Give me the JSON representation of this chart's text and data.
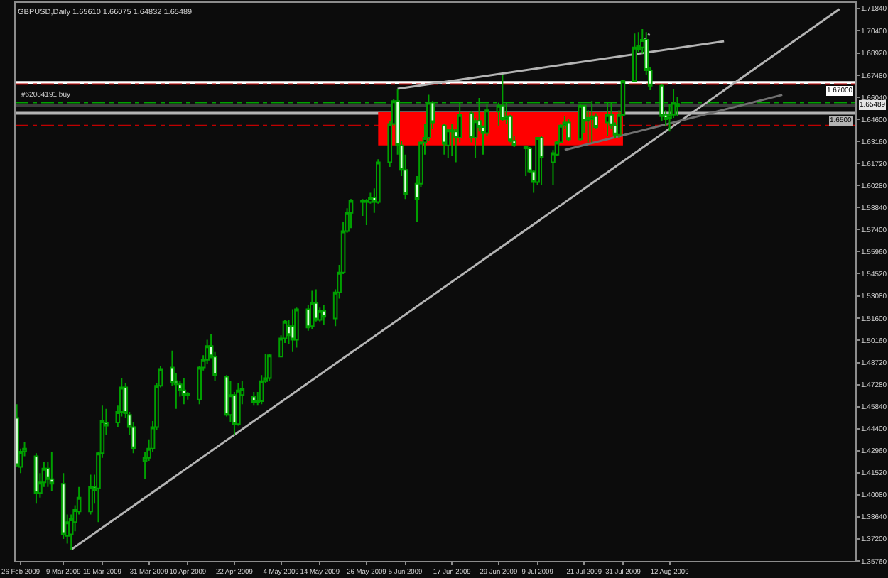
{
  "chart_data": {
    "type": "candlestick",
    "title": "GBPUSD,Daily 1.65610 1.66075 1.64832 1.65489",
    "series": [
      {
        "type": "line",
        "color": "#ff0000",
        "x": [
          "2009-05-29",
          "2009-07-31"
        ],
        "values": [
          1.65,
          1.65
        ],
        "lower": [
          1.629,
          1.629
        ],
        "upper": [
          1.65,
          1.65
        ]
      },
      {
        "type": "line",
        "color": "#b4b4b4",
        "line_style": "solid",
        "x": [
          "2009-03-11",
          "2009-09-24T17:00"
        ],
        "values": [
          1.365,
          1.718
        ]
      },
      {
        "type": "line",
        "color": "#b4b4b4",
        "line_style": "solid",
        "x": [
          "2009-06-03",
          "2009-08-26"
        ],
        "values": [
          1.666,
          1.697
        ]
      },
      {
        "type": "line",
        "color": "#707070",
        "line_style": "solid",
        "x": [
          "2009-07-16",
          "2009-09-10"
        ],
        "values": [
          1.626,
          1.662
        ]
      },
      {
        "type": "line",
        "color": "#a0a0a0",
        "line_style": "dotted",
        "x": [
          "2009-08-04",
          "2009-08-06T19:00"
        ],
        "values": [
          1.692,
          1.702
        ]
      },
      {
        "color": "#00a000",
        "x": [
          "2009-02-25",
          "2009-02-26",
          "2009-02-27",
          "2009-03-02",
          "2009-03-03",
          "2009-03-04",
          "2009-03-05",
          "2009-03-06",
          "2009-03-09",
          "2009-03-10",
          "2009-03-11",
          "2009-03-12",
          "2009-03-13",
          "2009-03-16",
          "2009-03-17",
          "2009-03-18",
          "2009-03-19",
          "2009-03-20",
          "2009-03-23",
          "2009-03-24",
          "2009-03-25",
          "2009-03-26",
          "2009-03-27",
          "2009-03-30",
          "2009-03-31",
          "2009-04-01",
          "2009-04-02",
          "2009-04-03",
          "2009-04-06",
          "2009-04-07",
          "2009-04-08",
          "2009-04-09",
          "2009-04-10",
          "2009-04-13",
          "2009-04-14",
          "2009-04-15",
          "2009-04-16",
          "2009-04-17",
          "2009-04-20",
          "2009-04-21",
          "2009-04-22",
          "2009-04-23",
          "2009-04-24",
          "2009-04-27",
          "2009-04-28",
          "2009-04-29",
          "2009-04-30",
          "2009-05-01",
          "2009-05-04",
          "2009-05-05",
          "2009-05-06",
          "2009-05-07",
          "2009-05-08",
          "2009-05-11",
          "2009-05-12",
          "2009-05-13",
          "2009-05-14",
          "2009-05-15",
          "2009-05-18",
          "2009-05-19",
          "2009-05-20",
          "2009-05-21",
          "2009-05-22",
          "2009-05-25",
          "2009-05-26",
          "2009-05-27",
          "2009-05-28",
          "2009-05-29",
          "2009-06-01",
          "2009-06-02",
          "2009-06-03",
          "2009-06-04",
          "2009-06-05",
          "2009-06-08",
          "2009-06-09",
          "2009-06-10",
          "2009-06-11",
          "2009-06-12",
          "2009-06-15",
          "2009-06-16",
          "2009-06-17",
          "2009-06-18",
          "2009-06-19",
          "2009-06-22",
          "2009-06-23",
          "2009-06-24",
          "2009-06-25",
          "2009-06-26",
          "2009-06-29",
          "2009-06-30",
          "2009-07-01",
          "2009-07-02",
          "2009-07-03",
          "2009-07-06",
          "2009-07-07",
          "2009-07-08",
          "2009-07-09",
          "2009-07-10",
          "2009-07-13",
          "2009-07-14",
          "2009-07-15",
          "2009-07-16",
          "2009-07-17",
          "2009-07-20",
          "2009-07-21",
          "2009-07-22",
          "2009-07-23",
          "2009-07-24",
          "2009-07-27",
          "2009-07-28",
          "2009-07-29",
          "2009-07-30",
          "2009-07-31",
          "2009-08-03",
          "2009-08-04",
          "2009-08-05",
          "2009-08-06",
          "2009-08-07",
          "2009-08-10",
          "2009-08-11",
          "2009-08-12",
          "2009-08-13",
          "2009-08-14"
        ],
        "ohlc": [
          [
            1.451,
            1.46,
            1.419,
            1.42
          ],
          [
            1.419,
            1.431,
            1.415,
            1.429
          ],
          [
            1.429,
            1.435,
            1.426,
            1.431
          ],
          [
            1.426,
            1.428,
            1.395,
            1.402
          ],
          [
            1.402,
            1.415,
            1.399,
            1.409
          ],
          [
            1.409,
            1.422,
            1.406,
            1.418
          ],
          [
            1.418,
            1.422,
            1.406,
            1.411
          ],
          [
            1.411,
            1.429,
            1.403,
            1.408
          ],
          [
            1.408,
            1.415,
            1.372,
            1.375
          ],
          [
            1.374,
            1.388,
            1.369,
            1.383
          ],
          [
            1.375,
            1.388,
            1.365,
            1.385
          ],
          [
            1.383,
            1.394,
            1.377,
            1.391
          ],
          [
            1.39,
            1.406,
            1.388,
            1.399
          ],
          [
            1.39,
            1.414,
            1.388,
            1.406
          ],
          [
            1.406,
            1.414,
            1.395,
            1.404
          ],
          [
            1.405,
            1.429,
            1.383,
            1.428
          ],
          [
            1.428,
            1.459,
            1.425,
            1.449
          ],
          [
            1.448,
            1.457,
            1.44,
            1.446
          ],
          [
            1.448,
            1.459,
            1.445,
            1.455
          ],
          [
            1.455,
            1.477,
            1.452,
            1.471
          ],
          [
            1.471,
            1.474,
            1.451,
            1.454
          ],
          [
            1.453,
            1.455,
            1.44,
            1.445
          ],
          [
            1.445,
            1.448,
            1.428,
            1.431
          ],
          [
            1.423,
            1.429,
            1.411,
            1.425
          ],
          [
            1.425,
            1.437,
            1.423,
            1.431
          ],
          [
            1.431,
            1.449,
            1.429,
            1.445
          ],
          [
            1.445,
            1.474,
            1.443,
            1.472
          ],
          [
            1.472,
            1.485,
            1.471,
            1.483
          ],
          [
            1.484,
            1.495,
            1.472,
            1.474
          ],
          [
            1.475,
            1.48,
            1.457,
            1.473
          ],
          [
            1.473,
            1.475,
            1.465,
            1.469
          ],
          [
            1.469,
            1.477,
            1.46,
            1.466
          ],
          [
            1.467,
            1.468,
            1.463,
            1.466
          ],
          [
            1.463,
            1.485,
            1.46,
            1.484
          ],
          [
            1.484,
            1.492,
            1.482,
            1.489
          ],
          [
            1.489,
            1.502,
            1.486,
            1.498
          ],
          [
            1.498,
            1.506,
            1.49,
            1.491
          ],
          [
            1.491,
            1.494,
            1.475,
            1.479
          ],
          [
            1.478,
            1.479,
            1.452,
            1.453
          ],
          [
            1.453,
            1.475,
            1.448,
            1.466
          ],
          [
            1.466,
            1.468,
            1.44,
            1.447
          ],
          [
            1.447,
            1.474,
            1.446,
            1.469
          ],
          [
            1.466,
            1.475,
            1.46,
            1.47
          ],
          [
            1.465,
            1.468,
            1.459,
            1.461
          ],
          [
            1.461,
            1.468,
            1.459,
            1.462
          ],
          [
            1.462,
            1.479,
            1.46,
            1.475
          ],
          [
            1.475,
            1.493,
            1.474,
            1.477
          ],
          [
            1.477,
            1.493,
            1.475,
            1.492
          ],
          [
            1.491,
            1.505,
            1.491,
            1.503
          ],
          [
            1.503,
            1.515,
            1.5,
            1.514
          ],
          [
            1.511,
            1.515,
            1.499,
            1.505
          ],
          [
            1.511,
            1.522,
            1.494,
            1.502
          ],
          [
            1.502,
            1.523,
            1.497,
            1.522
          ],
          [
            1.522,
            1.525,
            1.508,
            1.51
          ],
          [
            1.511,
            1.534,
            1.509,
            1.526
          ],
          [
            1.526,
            1.535,
            1.514,
            1.515
          ],
          [
            1.515,
            1.523,
            1.514,
            1.521
          ],
          [
            1.521,
            1.525,
            1.512,
            1.517
          ],
          [
            1.516,
            1.535,
            1.511,
            1.533
          ],
          [
            1.533,
            1.551,
            1.529,
            1.546
          ],
          [
            1.546,
            1.579,
            1.545,
            1.573
          ],
          [
            1.573,
            1.588,
            1.572,
            1.585
          ],
          [
            1.585,
            1.594,
            1.575,
            1.593
          ],
          [
            1.592,
            1.594,
            1.583,
            1.593
          ],
          [
            1.593,
            1.594,
            1.577,
            1.592
          ],
          [
            1.592,
            1.598,
            1.591,
            1.595
          ],
          [
            1.595,
            1.601,
            1.585,
            1.592
          ],
          [
            1.592,
            1.62,
            1.591,
            1.618
          ],
          [
            1.618,
            1.645,
            1.615,
            1.643
          ],
          [
            1.643,
            1.659,
            1.642,
            1.658
          ],
          [
            1.658,
            1.666,
            1.623,
            1.629
          ],
          [
            1.629,
            1.632,
            1.609,
            1.613
          ],
          [
            1.613,
            1.623,
            1.594,
            1.597
          ],
          [
            1.604,
            1.609,
            1.579,
            1.594
          ],
          [
            1.604,
            1.632,
            1.602,
            1.631
          ],
          [
            1.631,
            1.643,
            1.623,
            1.634
          ],
          [
            1.634,
            1.662,
            1.632,
            1.657
          ],
          [
            1.657,
            1.658,
            1.64,
            1.644
          ],
          [
            1.642,
            1.643,
            1.623,
            1.63
          ],
          [
            1.629,
            1.64,
            1.621,
            1.639
          ],
          [
            1.639,
            1.643,
            1.622,
            1.638
          ],
          [
            1.638,
            1.64,
            1.618,
            1.634
          ],
          [
            1.634,
            1.657,
            1.631,
            1.649
          ],
          [
            1.65,
            1.651,
            1.631,
            1.634
          ],
          [
            1.634,
            1.647,
            1.621,
            1.645
          ],
          [
            1.645,
            1.66,
            1.638,
            1.641
          ],
          [
            1.641,
            1.642,
            1.623,
            1.637
          ],
          [
            1.637,
            1.656,
            1.635,
            1.652
          ],
          [
            1.651,
            1.657,
            1.642,
            1.655
          ],
          [
            1.655,
            1.675,
            1.645,
            1.646
          ],
          [
            1.646,
            1.657,
            1.643,
            1.648
          ],
          [
            1.648,
            1.649,
            1.631,
            1.632
          ],
          [
            1.632,
            1.635,
            1.628,
            1.629
          ],
          [
            1.627,
            1.629,
            1.609,
            1.628
          ],
          [
            1.627,
            1.628,
            1.611,
            1.612
          ],
          [
            1.612,
            1.613,
            1.598,
            1.605
          ],
          [
            1.605,
            1.634,
            1.603,
            1.634
          ],
          [
            1.634,
            1.635,
            1.603,
            1.621
          ],
          [
            1.618,
            1.626,
            1.603,
            1.624
          ],
          [
            1.623,
            1.632,
            1.622,
            1.631
          ],
          [
            1.631,
            1.643,
            1.631,
            1.642
          ],
          [
            1.642,
            1.648,
            1.64,
            1.644
          ],
          [
            1.644,
            1.646,
            1.632,
            1.633
          ],
          [
            1.633,
            1.656,
            1.632,
            1.655
          ],
          [
            1.655,
            1.655,
            1.637,
            1.645
          ],
          [
            1.645,
            1.652,
            1.631,
            1.647
          ],
          [
            1.646,
            1.658,
            1.631,
            1.648
          ],
          [
            1.648,
            1.65,
            1.64,
            1.641
          ],
          [
            1.644,
            1.657,
            1.635,
            1.649
          ],
          [
            1.649,
            1.657,
            1.64,
            1.642
          ],
          [
            1.642,
            1.644,
            1.634,
            1.636
          ],
          [
            1.636,
            1.652,
            1.634,
            1.649
          ],
          [
            1.649,
            1.672,
            1.648,
            1.671
          ],
          [
            1.671,
            1.702,
            1.671,
            1.693
          ],
          [
            1.692,
            1.703,
            1.69,
            1.694
          ],
          [
            1.693,
            1.705,
            1.689,
            1.698
          ],
          [
            1.698,
            1.703,
            1.675,
            1.678
          ],
          [
            1.678,
            1.68,
            1.665,
            1.668
          ],
          [
            1.668,
            1.669,
            1.645,
            1.648
          ],
          [
            1.649,
            1.652,
            1.642,
            1.646
          ],
          [
            1.647,
            1.656,
            1.638,
            1.649
          ],
          [
            1.649,
            1.666,
            1.647,
            1.657
          ],
          [
            1.6561,
            1.66075,
            1.64832,
            1.65489
          ]
        ]
      }
    ],
    "xlim": [
      "2009-02-24T17:00",
      "2009-09-28T19:00"
    ],
    "ylim": [
      1.3576,
      1.7221
    ],
    "xticks": [
      {
        "value": "2009-02-26",
        "label": "26 Feb 2009"
      },
      {
        "value": "2009-03-09",
        "label": "9 Mar 2009"
      },
      {
        "value": "2009-03-19",
        "label": "19 Mar 2009"
      },
      {
        "value": "2009-03-31",
        "label": "31 Mar 2009"
      },
      {
        "value": "2009-04-10",
        "label": "10 Apr 2009"
      },
      {
        "value": "2009-04-22",
        "label": "22 Apr 2009"
      },
      {
        "value": "2009-05-04",
        "label": "4 May 2009"
      },
      {
        "value": "2009-05-14",
        "label": "14 May 2009"
      },
      {
        "value": "2009-05-26",
        "label": "26 May 2009"
      },
      {
        "value": "2009-06-05",
        "label": "5 Jun 2009"
      },
      {
        "value": "2009-06-17",
        "label": "17 Jun 2009"
      },
      {
        "value": "2009-06-29",
        "label": "29 Jun 2009"
      },
      {
        "value": "2009-07-09",
        "label": "9 Jul 2009"
      },
      {
        "value": "2009-07-21",
        "label": "21 Jul 2009"
      },
      {
        "value": "2009-07-31",
        "label": "31 Jul 2009"
      },
      {
        "value": "2009-08-12",
        "label": "12 Aug 2009"
      }
    ],
    "yticks": [
      {
        "value": 1.3576,
        "label": "1.35760"
      },
      {
        "value": 1.372,
        "label": "1.37200"
      },
      {
        "value": 1.3864,
        "label": "1.38640"
      },
      {
        "value": 1.4008,
        "label": "1.40080"
      },
      {
        "value": 1.4152,
        "label": "1.41520"
      },
      {
        "value": 1.4296,
        "label": "1.42960"
      },
      {
        "value": 1.444,
        "label": "1.44400"
      },
      {
        "value": 1.4584,
        "label": "1.45840"
      },
      {
        "value": 1.4728,
        "label": "1.47280"
      },
      {
        "value": 1.4872,
        "label": "1.48720"
      },
      {
        "value": 1.5016,
        "label": "1.50160"
      },
      {
        "value": 1.516,
        "label": "1.51600"
      },
      {
        "value": 1.5308,
        "label": "1.53080"
      },
      {
        "value": 1.5452,
        "label": "1.54520"
      },
      {
        "value": 1.5596,
        "label": "1.55960"
      },
      {
        "value": 1.574,
        "label": "1.57400"
      },
      {
        "value": 1.5884,
        "label": "1.58840"
      },
      {
        "value": 1.6028,
        "label": "1.60280"
      },
      {
        "value": 1.6172,
        "label": "1.61720"
      },
      {
        "value": 1.6316,
        "label": "1.63160"
      },
      {
        "value": 1.646,
        "label": "1.64600"
      },
      {
        "value": 1.6604,
        "label": "1.66040"
      },
      {
        "value": 1.6748,
        "label": "1.67480"
      },
      {
        "value": 1.6892,
        "label": "1.68920"
      },
      {
        "value": 1.704,
        "label": "1.70400"
      },
      {
        "value": 1.7184,
        "label": "1.71840"
      }
    ],
    "ref_lines": [
      {
        "axis": "y",
        "value": 1.67,
        "label": "1.67000",
        "color": "#ffffff",
        "line_style": "solid"
      },
      {
        "axis": "y",
        "value": 1.669,
        "color": "#c00000",
        "line_style": "dashed"
      },
      {
        "axis": "y",
        "value": 1.657,
        "label": "#62084191 buy",
        "color": "#00a000",
        "line_style": "dashed"
      },
      {
        "axis": "y",
        "value": 1.65489,
        "color": "#3c3c3c",
        "line_style": "solid"
      },
      {
        "axis": "y",
        "value": 1.65,
        "label": "1.6500",
        "color": "#b4b4b4",
        "line_style": "solid"
      },
      {
        "axis": "y",
        "value": 1.642,
        "color": "#c00000",
        "line_style": "dashed"
      }
    ],
    "annotations": [
      {
        "text": "1.65489",
        "y": 1.65489
      }
    ]
  }
}
